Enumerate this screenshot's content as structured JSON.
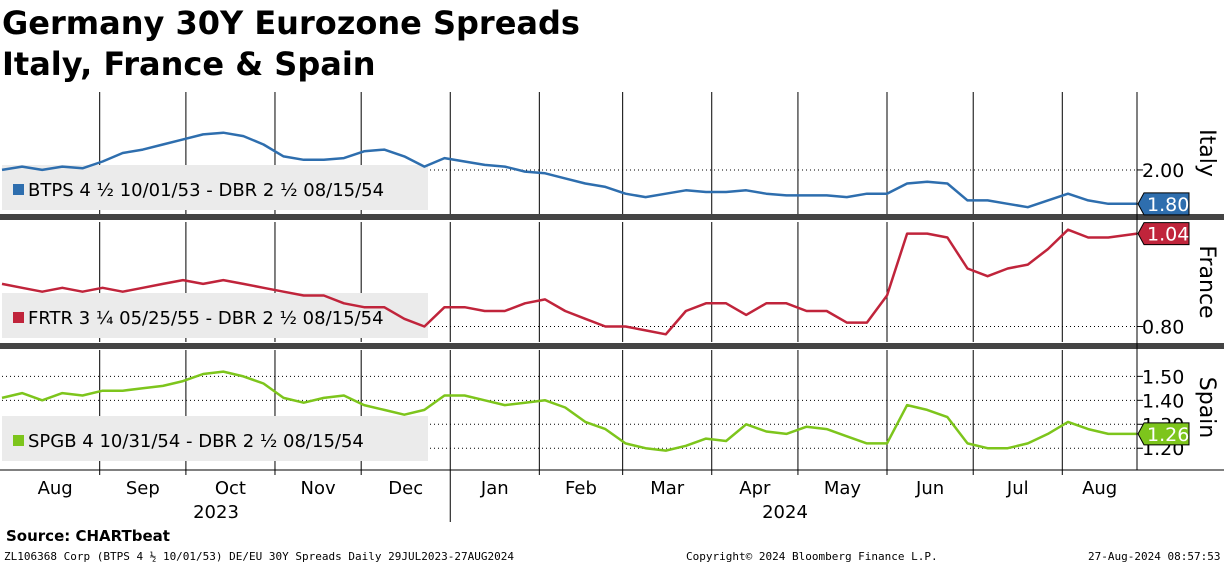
{
  "title_line1": "Germany 30Y Eurozone Spreads",
  "title_line2": "Italy, France & Spain",
  "source": "Source: CHARTbeat",
  "footer": {
    "left": "ZL106368 Corp (BTPS 4 ½ 10/01/53) DE/EU 30Y Spreads  Daily 29JUL2023-27AUG2024",
    "center": "Copyright© 2024 Bloomberg Finance L.P.",
    "right": "27-Aug-2024 08:57:53"
  },
  "chart_data": {
    "type": "line",
    "x_months": [
      "Aug",
      "Sep",
      "Oct",
      "Nov",
      "Dec",
      "Jan",
      "Feb",
      "Mar",
      "Apr",
      "May",
      "Jun",
      "Jul",
      "Aug"
    ],
    "x_years": [
      "2023",
      "2024"
    ],
    "x_range": [
      "2023-07-29",
      "2024-08-27"
    ],
    "grid": true,
    "panels": [
      {
        "name": "Italy",
        "legend": "BTPS 4 ½ 10/01/53 - DBR 2 ½ 08/15/54",
        "color": "#2e6eae",
        "last_value": "1.80",
        "ticks": [
          "2.00"
        ],
        "ylim": [
          1.74,
          2.46
        ],
        "series_points": [
          [
            "2023-07-29",
            2.0
          ],
          [
            "2023-08-05",
            2.02
          ],
          [
            "2023-08-12",
            2.0
          ],
          [
            "2023-08-19",
            2.02
          ],
          [
            "2023-08-26",
            2.01
          ],
          [
            "2023-09-02",
            2.05
          ],
          [
            "2023-09-09",
            2.1
          ],
          [
            "2023-09-16",
            2.12
          ],
          [
            "2023-09-23",
            2.15
          ],
          [
            "2023-09-30",
            2.18
          ],
          [
            "2023-10-07",
            2.21
          ],
          [
            "2023-10-14",
            2.22
          ],
          [
            "2023-10-21",
            2.2
          ],
          [
            "2023-10-28",
            2.15
          ],
          [
            "2023-11-04",
            2.08
          ],
          [
            "2023-11-11",
            2.06
          ],
          [
            "2023-11-18",
            2.06
          ],
          [
            "2023-11-25",
            2.07
          ],
          [
            "2023-12-02",
            2.11
          ],
          [
            "2023-12-09",
            2.12
          ],
          [
            "2023-12-16",
            2.08
          ],
          [
            "2023-12-23",
            2.02
          ],
          [
            "2023-12-30",
            2.07
          ],
          [
            "2024-01-06",
            2.05
          ],
          [
            "2024-01-13",
            2.03
          ],
          [
            "2024-01-20",
            2.02
          ],
          [
            "2024-01-27",
            1.99
          ],
          [
            "2024-02-03",
            1.98
          ],
          [
            "2024-02-10",
            1.95
          ],
          [
            "2024-02-17",
            1.92
          ],
          [
            "2024-02-24",
            1.9
          ],
          [
            "2024-03-02",
            1.86
          ],
          [
            "2024-03-09",
            1.84
          ],
          [
            "2024-03-16",
            1.86
          ],
          [
            "2024-03-23",
            1.88
          ],
          [
            "2024-03-30",
            1.87
          ],
          [
            "2024-04-06",
            1.87
          ],
          [
            "2024-04-13",
            1.88
          ],
          [
            "2024-04-20",
            1.86
          ],
          [
            "2024-04-27",
            1.85
          ],
          [
            "2024-05-04",
            1.85
          ],
          [
            "2024-05-11",
            1.85
          ],
          [
            "2024-05-18",
            1.84
          ],
          [
            "2024-05-25",
            1.86
          ],
          [
            "2024-06-01",
            1.86
          ],
          [
            "2024-06-08",
            1.92
          ],
          [
            "2024-06-15",
            1.93
          ],
          [
            "2024-06-22",
            1.92
          ],
          [
            "2024-06-29",
            1.82
          ],
          [
            "2024-07-06",
            1.82
          ],
          [
            "2024-07-13",
            1.8
          ],
          [
            "2024-07-20",
            1.78
          ],
          [
            "2024-07-27",
            1.82
          ],
          [
            "2024-08-03",
            1.86
          ],
          [
            "2024-08-10",
            1.82
          ],
          [
            "2024-08-17",
            1.8
          ],
          [
            "2024-08-27",
            1.8
          ]
        ]
      },
      {
        "name": "France",
        "legend": "FRTR 3 ¼ 05/25/55 - DBR 2 ½ 08/15/54",
        "color": "#c0243b",
        "last_value": "1.04",
        "ticks": [
          "0.80"
        ],
        "ylim": [
          0.76,
          1.07
        ],
        "series_points": [
          [
            "2023-07-29",
            0.91
          ],
          [
            "2023-08-05",
            0.9
          ],
          [
            "2023-08-12",
            0.89
          ],
          [
            "2023-08-19",
            0.9
          ],
          [
            "2023-08-26",
            0.89
          ],
          [
            "2023-09-02",
            0.9
          ],
          [
            "2023-09-09",
            0.89
          ],
          [
            "2023-09-16",
            0.9
          ],
          [
            "2023-09-23",
            0.91
          ],
          [
            "2023-09-30",
            0.92
          ],
          [
            "2023-10-07",
            0.91
          ],
          [
            "2023-10-14",
            0.92
          ],
          [
            "2023-10-21",
            0.91
          ],
          [
            "2023-10-28",
            0.9
          ],
          [
            "2023-11-04",
            0.89
          ],
          [
            "2023-11-11",
            0.88
          ],
          [
            "2023-11-18",
            0.88
          ],
          [
            "2023-11-25",
            0.86
          ],
          [
            "2023-12-02",
            0.85
          ],
          [
            "2023-12-09",
            0.85
          ],
          [
            "2023-12-16",
            0.82
          ],
          [
            "2023-12-23",
            0.8
          ],
          [
            "2023-12-30",
            0.85
          ],
          [
            "2024-01-06",
            0.85
          ],
          [
            "2024-01-13",
            0.84
          ],
          [
            "2024-01-20",
            0.84
          ],
          [
            "2024-01-27",
            0.86
          ],
          [
            "2024-02-03",
            0.87
          ],
          [
            "2024-02-10",
            0.84
          ],
          [
            "2024-02-17",
            0.82
          ],
          [
            "2024-02-24",
            0.8
          ],
          [
            "2024-03-02",
            0.8
          ],
          [
            "2024-03-09",
            0.79
          ],
          [
            "2024-03-16",
            0.78
          ],
          [
            "2024-03-23",
            0.84
          ],
          [
            "2024-03-30",
            0.86
          ],
          [
            "2024-04-06",
            0.86
          ],
          [
            "2024-04-13",
            0.83
          ],
          [
            "2024-04-20",
            0.86
          ],
          [
            "2024-04-27",
            0.86
          ],
          [
            "2024-05-04",
            0.84
          ],
          [
            "2024-05-11",
            0.84
          ],
          [
            "2024-05-18",
            0.81
          ],
          [
            "2024-05-25",
            0.81
          ],
          [
            "2024-06-01",
            0.88
          ],
          [
            "2024-06-08",
            1.04
          ],
          [
            "2024-06-15",
            1.04
          ],
          [
            "2024-06-22",
            1.03
          ],
          [
            "2024-06-29",
            0.95
          ],
          [
            "2024-07-06",
            0.93
          ],
          [
            "2024-07-13",
            0.95
          ],
          [
            "2024-07-20",
            0.96
          ],
          [
            "2024-07-27",
            1.0
          ],
          [
            "2024-08-03",
            1.05
          ],
          [
            "2024-08-10",
            1.03
          ],
          [
            "2024-08-17",
            1.03
          ],
          [
            "2024-08-27",
            1.04
          ]
        ]
      },
      {
        "name": "Spain",
        "legend": "SPGB 4 10/31/54 - DBR 2 ½ 08/15/54",
        "color": "#7dc51c",
        "last_value": "1.26",
        "ticks": [
          "1.50",
          "1.40",
          "1.30",
          "1.20"
        ],
        "ylim": [
          1.13,
          1.61
        ],
        "series_points": [
          [
            "2023-07-29",
            1.41
          ],
          [
            "2023-08-05",
            1.43
          ],
          [
            "2023-08-12",
            1.4
          ],
          [
            "2023-08-19",
            1.43
          ],
          [
            "2023-08-26",
            1.42
          ],
          [
            "2023-09-02",
            1.44
          ],
          [
            "2023-09-09",
            1.44
          ],
          [
            "2023-09-16",
            1.45
          ],
          [
            "2023-09-23",
            1.46
          ],
          [
            "2023-09-30",
            1.48
          ],
          [
            "2023-10-07",
            1.51
          ],
          [
            "2023-10-14",
            1.52
          ],
          [
            "2023-10-21",
            1.5
          ],
          [
            "2023-10-28",
            1.47
          ],
          [
            "2023-11-04",
            1.41
          ],
          [
            "2023-11-11",
            1.39
          ],
          [
            "2023-11-18",
            1.41
          ],
          [
            "2023-11-25",
            1.42
          ],
          [
            "2023-12-02",
            1.38
          ],
          [
            "2023-12-09",
            1.36
          ],
          [
            "2023-12-16",
            1.34
          ],
          [
            "2023-12-23",
            1.36
          ],
          [
            "2023-12-30",
            1.42
          ],
          [
            "2024-01-06",
            1.42
          ],
          [
            "2024-01-13",
            1.4
          ],
          [
            "2024-01-20",
            1.38
          ],
          [
            "2024-01-27",
            1.39
          ],
          [
            "2024-02-03",
            1.4
          ],
          [
            "2024-02-10",
            1.37
          ],
          [
            "2024-02-17",
            1.31
          ],
          [
            "2024-02-24",
            1.28
          ],
          [
            "2024-03-02",
            1.22
          ],
          [
            "2024-03-09",
            1.2
          ],
          [
            "2024-03-16",
            1.19
          ],
          [
            "2024-03-23",
            1.21
          ],
          [
            "2024-03-30",
            1.24
          ],
          [
            "2024-04-06",
            1.23
          ],
          [
            "2024-04-13",
            1.3
          ],
          [
            "2024-04-20",
            1.27
          ],
          [
            "2024-04-27",
            1.26
          ],
          [
            "2024-05-04",
            1.29
          ],
          [
            "2024-05-11",
            1.28
          ],
          [
            "2024-05-18",
            1.25
          ],
          [
            "2024-05-25",
            1.22
          ],
          [
            "2024-06-01",
            1.22
          ],
          [
            "2024-06-08",
            1.38
          ],
          [
            "2024-06-15",
            1.36
          ],
          [
            "2024-06-22",
            1.33
          ],
          [
            "2024-06-29",
            1.22
          ],
          [
            "2024-07-06",
            1.2
          ],
          [
            "2024-07-13",
            1.2
          ],
          [
            "2024-07-20",
            1.22
          ],
          [
            "2024-07-27",
            1.26
          ],
          [
            "2024-08-03",
            1.31
          ],
          [
            "2024-08-10",
            1.28
          ],
          [
            "2024-08-17",
            1.26
          ],
          [
            "2024-08-27",
            1.26
          ]
        ]
      }
    ]
  }
}
